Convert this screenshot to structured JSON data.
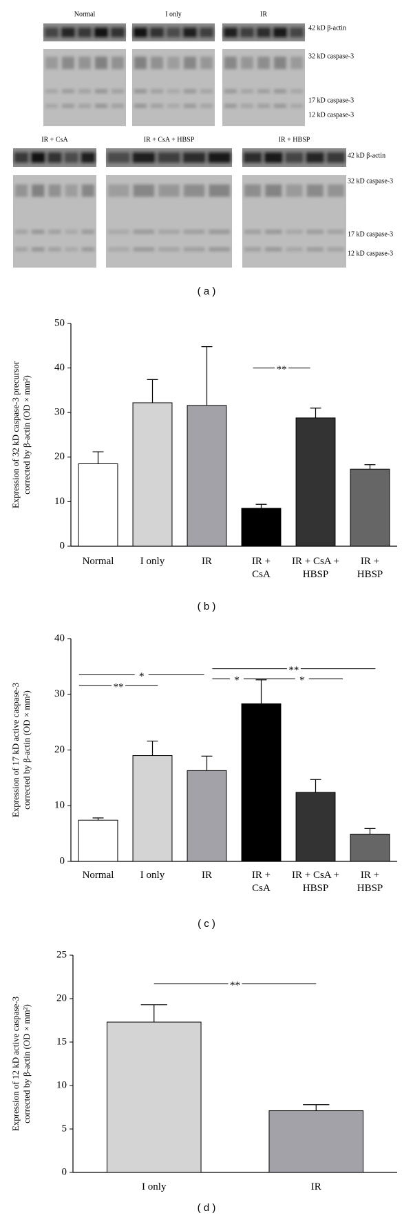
{
  "blot": {
    "panel_label": "( a )",
    "rows": [
      {
        "groups": [
          "Normal",
          "I only",
          "IR"
        ],
        "markers": [
          "42 kD β-actin",
          "32 kD caspase-3",
          "17 kD caspase-3",
          "12 kD caspase-3"
        ]
      },
      {
        "groups": [
          "IR + CsA",
          "IR + CsA + HBSP",
          "IR + HBSP"
        ],
        "markers": [
          "42 kD β-actin",
          "32 kD caspase-3",
          "17 kD caspase-3",
          "12 kD caspase-3"
        ]
      }
    ]
  },
  "chart_data": [
    {
      "type": "bar",
      "panel_label": "( b )",
      "ylabel": [
        "Expression of 32 kD caspase-3 precursor",
        "corrected by β-actin (OD × mm²)"
      ],
      "categories": [
        "Normal",
        "I only",
        "IR",
        "IR +\nCsA",
        "IR + CsA +\nHBSP",
        "IR +\nHBSP"
      ],
      "values": [
        18.5,
        32.2,
        31.6,
        8.5,
        28.8,
        17.3
      ],
      "errors": [
        2.7,
        5.2,
        13.2,
        0.9,
        2.2,
        1.0
      ],
      "colors": [
        "#ffffff",
        "#d4d4d4",
        "#a2a2a8",
        "#000000",
        "#333333",
        "#666666"
      ],
      "ylim": [
        0,
        50
      ],
      "yticks": [
        0,
        10,
        20,
        30,
        40,
        50
      ],
      "annotations": [
        "**"
      ]
    },
    {
      "type": "bar",
      "panel_label": "( c )",
      "ylabel": [
        "Expression of 17 kD active caspase-3",
        "corrected by β-actin (OD × mm²)"
      ],
      "categories": [
        "Normal",
        "I only",
        "IR",
        "IR +\nCsA",
        "IR + CsA +\nHBSP",
        "IR +\nHBSP"
      ],
      "values": [
        7.4,
        19.0,
        16.3,
        28.3,
        12.4,
        4.9
      ],
      "errors": [
        0.4,
        2.6,
        2.6,
        4.3,
        2.3,
        1.0
      ],
      "colors": [
        "#ffffff",
        "#d4d4d4",
        "#a2a2a8",
        "#000000",
        "#333333",
        "#666666"
      ],
      "ylim": [
        0,
        40
      ],
      "yticks": [
        0,
        10,
        20,
        30,
        40
      ],
      "annotations": [
        "*",
        "**",
        "*",
        "*",
        "**"
      ]
    },
    {
      "type": "bar",
      "panel_label": "( d )",
      "ylabel": [
        "Expression of 12 kD active caspase-3",
        "corrected by β-actin (OD × mm²)"
      ],
      "categories": [
        "I only",
        "IR"
      ],
      "values": [
        17.3,
        7.1
      ],
      "errors": [
        2.0,
        0.7
      ],
      "colors": [
        "#d4d4d4",
        "#a2a2a8"
      ],
      "ylim": [
        0,
        25
      ],
      "yticks": [
        0,
        5,
        10,
        15,
        20,
        25
      ],
      "annotations": [
        "**"
      ]
    }
  ]
}
